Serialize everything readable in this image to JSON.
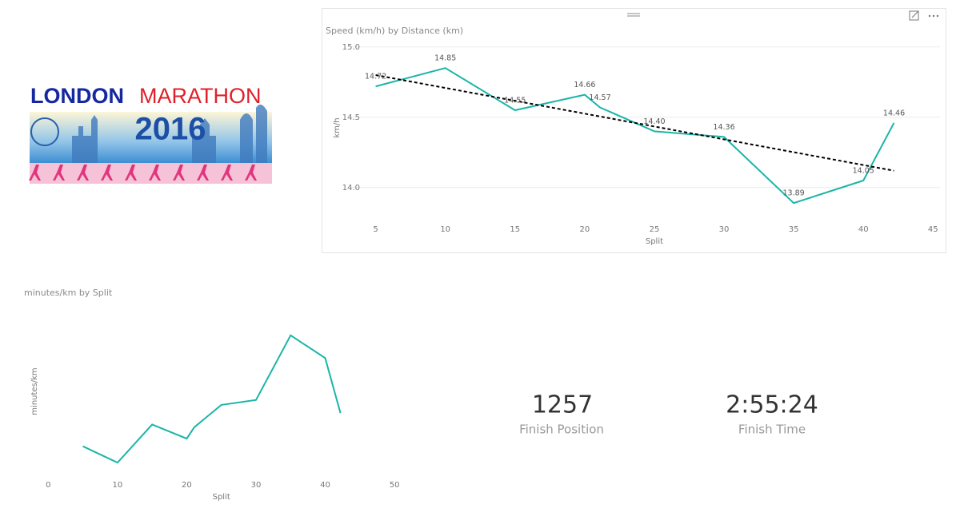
{
  "logo": {
    "word1": "LONDON",
    "word2": "MARATHON",
    "year": "2016"
  },
  "chart_data": [
    {
      "type": "line",
      "title": "Speed (km/h) by Distance (km)",
      "x_label": "Split",
      "y_label": "km/h",
      "x": [
        5,
        10,
        15,
        20,
        21.1,
        25,
        30,
        35,
        40,
        42.2
      ],
      "values": [
        14.72,
        14.85,
        14.55,
        14.66,
        14.57,
        14.4,
        14.36,
        13.89,
        14.05,
        14.46
      ],
      "value_labels": [
        "14.72",
        "14.85",
        "14.55",
        "14.66",
        "14.57",
        "14.40",
        "14.36",
        "13.89",
        "14.05",
        "14.46"
      ],
      "color": "#1ab5a8",
      "trendline": {
        "x": [
          5,
          42.2
        ],
        "values": [
          14.8,
          14.12
        ],
        "color": "#000000"
      },
      "xlim": [
        3.3,
        45.5
      ],
      "xticks": [
        5,
        10,
        15,
        20,
        25,
        30,
        35,
        40,
        45
      ],
      "ylim": [
        13.8,
        15.05
      ],
      "yticks": [
        {
          "value": 14,
          "label": "14.0"
        },
        {
          "value": 14.5,
          "label": "14.5"
        },
        {
          "value": 15,
          "label": "15.0"
        }
      ],
      "grid": true
    },
    {
      "type": "line",
      "title": "minutes/km by Split",
      "x_label": "Split",
      "y_label": "minutes/km",
      "x": [
        5,
        10,
        15,
        20,
        21.1,
        25,
        30,
        35,
        40,
        42.2
      ],
      "values": [
        4.076,
        4.04,
        4.124,
        4.093,
        4.118,
        4.167,
        4.178,
        4.32,
        4.27,
        4.149
      ],
      "color": "#1ab5a8",
      "xlim": [
        -0.5,
        50.8
      ],
      "xticks": [
        0,
        10,
        20,
        30,
        40,
        50
      ],
      "ylim": [
        4.0,
        4.39
      ],
      "grid": false
    }
  ],
  "cards": [
    {
      "value": 1257,
      "label": "Finish Position"
    },
    {
      "value": "2:55:24",
      "label": "Finish Time"
    }
  ]
}
